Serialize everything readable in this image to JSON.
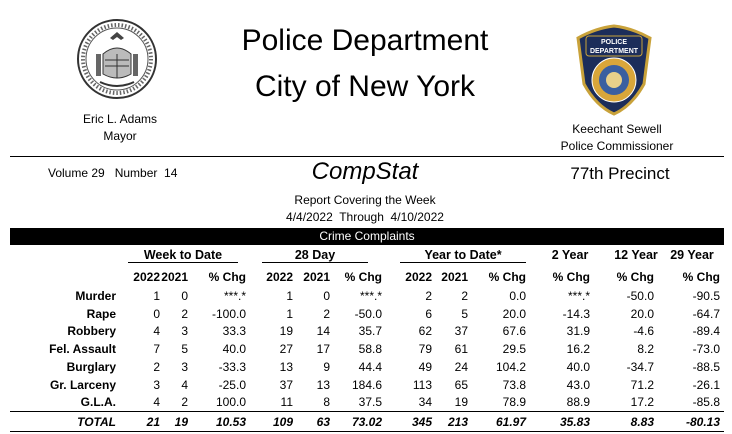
{
  "header": {
    "title_line1": "Police Department",
    "title_line2": "City of New York",
    "mayor_name": "Eric L. Adams",
    "mayor_title": "Mayor",
    "commissioner_name": "Keechant Sewell",
    "commissioner_title": "Police Commissioner",
    "badge_text_top": "POLICE",
    "badge_text_mid": "DEPARTMENT",
    "badge_text_arc": "CITY OF NEW YORK"
  },
  "report": {
    "volume": "Volume 29   Number  14",
    "name": "CompStat",
    "precinct": "77th Precinct",
    "covering": "Report Covering the Week",
    "date_range": "4/4/2022  Through  4/10/2022"
  },
  "table": {
    "banner": "Crime Complaints",
    "groups": {
      "week": "Week to Date",
      "day28": "28 Day",
      "ytd": "Year to Date*",
      "y2": "2 Year",
      "y12": "12 Year",
      "y29": "29 Year"
    },
    "headers": [
      "2022",
      "2021",
      "% Chg",
      "2022",
      "2021",
      "% Chg",
      "2022",
      "2021",
      "% Chg",
      "% Chg",
      "% Chg",
      "% Chg"
    ],
    "rows": [
      {
        "label": "Murder",
        "cells": [
          "1",
          "0",
          "***.*",
          "1",
          "0",
          "***.*",
          "2",
          "2",
          "0.0",
          "***.*",
          "-50.0",
          "-90.5"
        ]
      },
      {
        "label": "Rape",
        "cells": [
          "0",
          "2",
          "-100.0",
          "1",
          "2",
          "-50.0",
          "6",
          "5",
          "20.0",
          "-14.3",
          "20.0",
          "-64.7"
        ]
      },
      {
        "label": "Robbery",
        "cells": [
          "4",
          "3",
          "33.3",
          "19",
          "14",
          "35.7",
          "62",
          "37",
          "67.6",
          "31.9",
          "-4.6",
          "-89.4"
        ]
      },
      {
        "label": "Fel. Assault",
        "cells": [
          "7",
          "5",
          "40.0",
          "27",
          "17",
          "58.8",
          "79",
          "61",
          "29.5",
          "16.2",
          "8.2",
          "-73.0"
        ]
      },
      {
        "label": "Burglary",
        "cells": [
          "2",
          "3",
          "-33.3",
          "13",
          "9",
          "44.4",
          "49",
          "24",
          "104.2",
          "40.0",
          "-34.7",
          "-88.5"
        ]
      },
      {
        "label": "Gr. Larceny",
        "cells": [
          "3",
          "4",
          "-25.0",
          "37",
          "13",
          "184.6",
          "113",
          "65",
          "73.8",
          "43.0",
          "71.2",
          "-26.1"
        ]
      },
      {
        "label": "G.L.A.",
        "cells": [
          "4",
          "2",
          "100.0",
          "11",
          "8",
          "37.5",
          "34",
          "19",
          "78.9",
          "88.9",
          "17.2",
          "-85.8"
        ]
      }
    ],
    "total": {
      "label": "TOTAL",
      "cells": [
        "21",
        "19",
        "10.53",
        "109",
        "63",
        "73.02",
        "345",
        "213",
        "61.97",
        "35.83",
        "8.83",
        "-80.13"
      ]
    }
  }
}
